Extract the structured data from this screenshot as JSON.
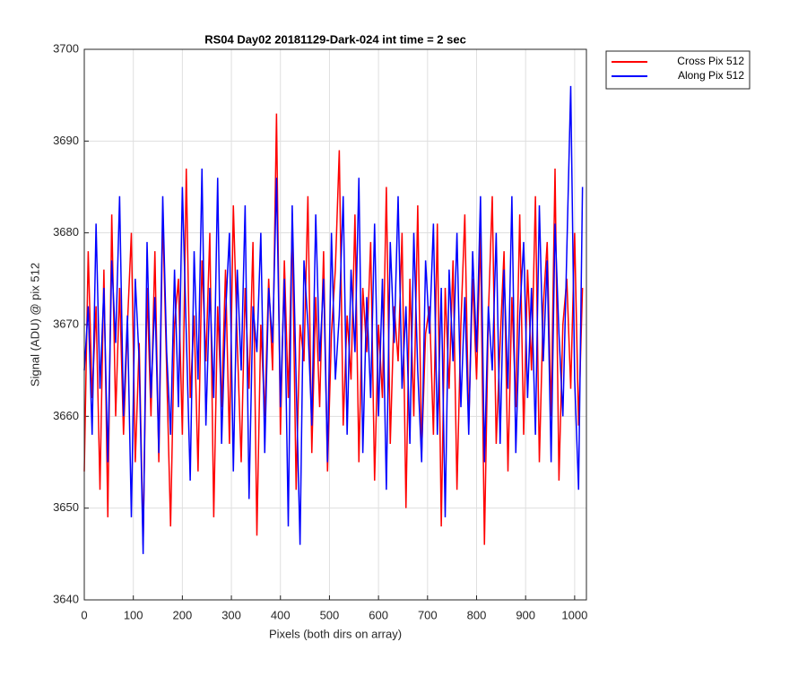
{
  "chart_data": {
    "type": "line",
    "title": "RS04 Day02 20181129-Dark-024 int time = 2 sec",
    "xlabel": "Pixels (both dirs on array)",
    "ylabel": "Signal (ADU) @ pix 512",
    "x": [
      0,
      8,
      16,
      24,
      32,
      40,
      48,
      56,
      64,
      72,
      80,
      88,
      96,
      104,
      112,
      120,
      128,
      136,
      144,
      152,
      160,
      168,
      176,
      184,
      192,
      200,
      208,
      216,
      224,
      232,
      240,
      248,
      256,
      264,
      272,
      280,
      288,
      296,
      304,
      312,
      320,
      328,
      336,
      344,
      352,
      360,
      368,
      376,
      384,
      392,
      400,
      408,
      416,
      424,
      432,
      440,
      448,
      456,
      464,
      472,
      480,
      488,
      496,
      504,
      512,
      520,
      528,
      536,
      544,
      552,
      560,
      568,
      576,
      584,
      592,
      600,
      608,
      616,
      624,
      632,
      640,
      648,
      656,
      664,
      672,
      680,
      688,
      696,
      704,
      712,
      720,
      728,
      736,
      744,
      752,
      760,
      768,
      776,
      784,
      792,
      800,
      808,
      816,
      824,
      832,
      840,
      848,
      856,
      864,
      872,
      880,
      888,
      896,
      904,
      912,
      920,
      928,
      936,
      944,
      952,
      960,
      968,
      976,
      984,
      992,
      1000,
      1008,
      1016
    ],
    "series": [
      {
        "name": "Cross Pix 512",
        "color": "#ff0000",
        "values": [
          3654,
          3678,
          3662,
          3672,
          3652,
          3676,
          3649,
          3682,
          3660,
          3674,
          3658,
          3670,
          3680,
          3655,
          3668,
          3646,
          3674,
          3660,
          3678,
          3655,
          3682,
          3665,
          3648,
          3670,
          3675,
          3658,
          3687,
          3662,
          3671,
          3654,
          3677,
          3666,
          3680,
          3649,
          3672,
          3661,
          3676,
          3657,
          3683,
          3668,
          3655,
          3674,
          3663,
          3679,
          3647,
          3670,
          3660,
          3675,
          3665,
          3693,
          3658,
          3677,
          3662,
          3681,
          3652,
          3670,
          3666,
          3684,
          3656,
          3673,
          3661,
          3678,
          3654,
          3669,
          3676,
          3689,
          3659,
          3671,
          3664,
          3682,
          3655,
          3674,
          3667,
          3679,
          3653,
          3670,
          3662,
          3685,
          3657,
          3672,
          3666,
          3680,
          3650,
          3675,
          3660,
          3683,
          3656,
          3669,
          3672,
          3658,
          3681,
          3648,
          3674,
          3663,
          3677,
          3652,
          3670,
          3682,
          3659,
          3675,
          3664,
          3680,
          3646,
          3671,
          3684,
          3657,
          3668,
          3678,
          3654,
          3673,
          3661,
          3682,
          3658,
          3676,
          3665,
          3684,
          3655,
          3672,
          3679,
          3660,
          3687,
          3653,
          3670,
          3675,
          3663,
          3680,
          3659,
          3674
        ]
      },
      {
        "name": "Along Pix 512",
        "color": "#0000ff",
        "values": [
          3665,
          3672,
          3658,
          3681,
          3663,
          3674,
          3655,
          3677,
          3668,
          3684,
          3660,
          3671,
          3649,
          3675,
          3666,
          3645,
          3679,
          3662,
          3673,
          3656,
          3684,
          3667,
          3658,
          3676,
          3661,
          3685,
          3669,
          3653,
          3678,
          3664,
          3687,
          3659,
          3674,
          3662,
          3686,
          3657,
          3671,
          3680,
          3654,
          3676,
          3665,
          3683,
          3651,
          3672,
          3667,
          3680,
          3656,
          3674,
          3668,
          3686,
          3661,
          3675,
          3648,
          3683,
          3664,
          3646,
          3677,
          3670,
          3659,
          3682,
          3666,
          3675,
          3655,
          3680,
          3664,
          3671,
          3684,
          3658,
          3676,
          3667,
          3686,
          3656,
          3673,
          3662,
          3681,
          3660,
          3675,
          3652,
          3679,
          3668,
          3684,
          3663,
          3672,
          3657,
          3680,
          3665,
          3655,
          3677,
          3669,
          3681,
          3658,
          3674,
          3649,
          3676,
          3666,
          3680,
          3661,
          3673,
          3658,
          3678,
          3667,
          3684,
          3655,
          3672,
          3665,
          3680,
          3657,
          3676,
          3663,
          3684,
          3656,
          3671,
          3679,
          3662,
          3674,
          3658,
          3683,
          3666,
          3677,
          3655,
          3681,
          3669,
          3660,
          3678,
          3696,
          3664,
          3652,
          3685
        ]
      }
    ],
    "xlim": [
      0,
      1024
    ],
    "ylim": [
      3640,
      3700
    ],
    "xticks": [
      0,
      100,
      200,
      300,
      400,
      500,
      600,
      700,
      800,
      900,
      1000
    ],
    "yticks": [
      3640,
      3650,
      3660,
      3670,
      3680,
      3690,
      3700
    ],
    "grid": true,
    "legend": "outside-top-right"
  }
}
